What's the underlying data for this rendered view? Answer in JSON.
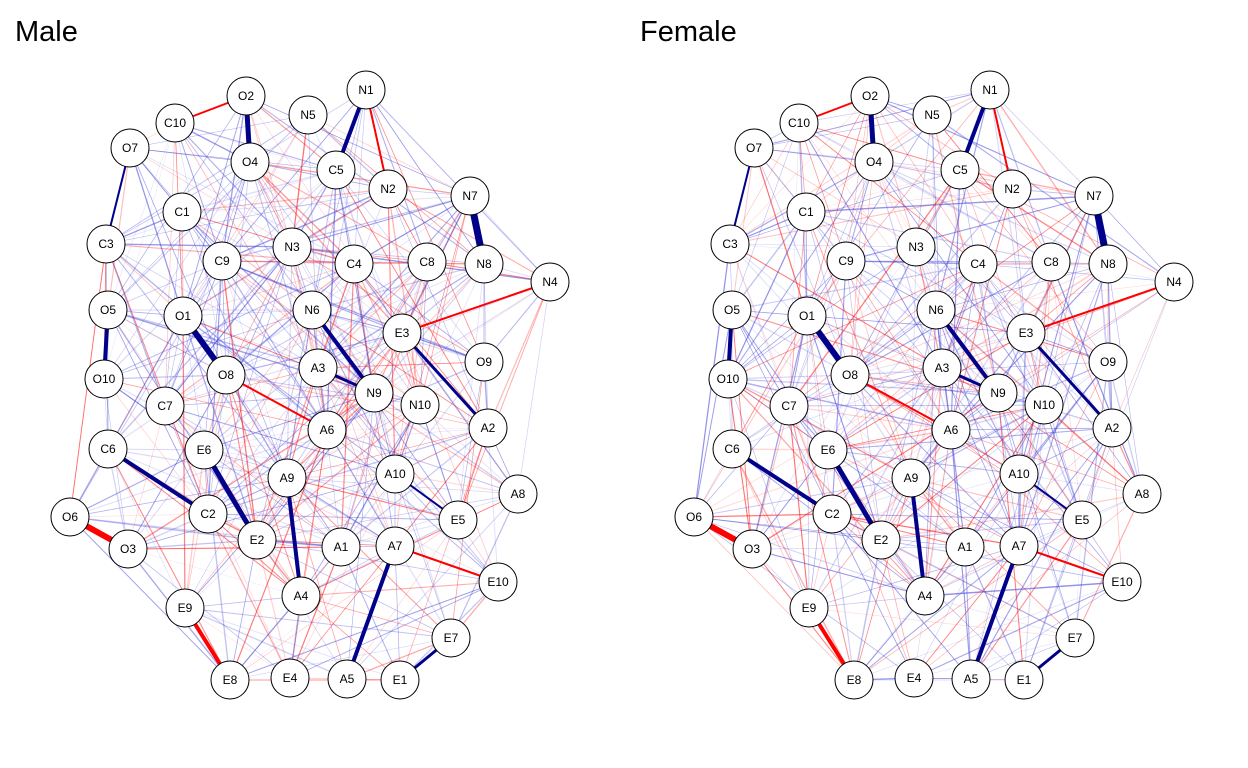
{
  "panels": [
    {
      "key": "male",
      "title": "Male"
    },
    {
      "key": "female",
      "title": "Female"
    }
  ],
  "network": {
    "positive_color": "#00008b",
    "negative_color": "#ff0000",
    "node_fill": "#ffffff",
    "node_stroke": "#000000",
    "nodes": [
      "N1",
      "N2",
      "N3",
      "N4",
      "N5",
      "N6",
      "N7",
      "N8",
      "N9",
      "N10",
      "E1",
      "E2",
      "E3",
      "E4",
      "E5",
      "E6",
      "E7",
      "E8",
      "E9",
      "E10",
      "O1",
      "O2",
      "O3",
      "O4",
      "O5",
      "O6",
      "O7",
      "O8",
      "O9",
      "O10",
      "A1",
      "A2",
      "A3",
      "A4",
      "A5",
      "A6",
      "A7",
      "A8",
      "A9",
      "A10",
      "C1",
      "C2",
      "C3",
      "C4",
      "C5",
      "C6",
      "C7",
      "C8",
      "C9",
      "C10"
    ],
    "strong_edges": [
      {
        "from": "N1",
        "to": "C5",
        "sign": "positive",
        "weight": 4
      },
      {
        "from": "N1",
        "to": "N2",
        "sign": "negative",
        "weight": 2
      },
      {
        "from": "N7",
        "to": "N8",
        "sign": "positive",
        "weight": 7
      },
      {
        "from": "O2",
        "to": "O4",
        "sign": "positive",
        "weight": 5
      },
      {
        "from": "O2",
        "to": "C10",
        "sign": "negative",
        "weight": 2
      },
      {
        "from": "O1",
        "to": "O8",
        "sign": "positive",
        "weight": 6
      },
      {
        "from": "O6",
        "to": "O3",
        "sign": "negative",
        "weight": 6
      },
      {
        "from": "E6",
        "to": "E2",
        "sign": "positive",
        "weight": 5
      },
      {
        "from": "C6",
        "to": "C2",
        "sign": "positive",
        "weight": 4
      },
      {
        "from": "A9",
        "to": "A4",
        "sign": "positive",
        "weight": 4
      },
      {
        "from": "A7",
        "to": "A5",
        "sign": "positive",
        "weight": 4
      },
      {
        "from": "N6",
        "to": "N9",
        "sign": "positive",
        "weight": 4
      },
      {
        "from": "A3",
        "to": "N9",
        "sign": "positive",
        "weight": 3
      },
      {
        "from": "E9",
        "to": "E8",
        "sign": "negative",
        "weight": 4
      },
      {
        "from": "E7",
        "to": "E1",
        "sign": "positive",
        "weight": 3
      },
      {
        "from": "E3",
        "to": "A2",
        "sign": "positive",
        "weight": 3
      },
      {
        "from": "O5",
        "to": "O10",
        "sign": "positive",
        "weight": 4
      },
      {
        "from": "A10",
        "to": "E5",
        "sign": "positive",
        "weight": 2
      },
      {
        "from": "C3",
        "to": "O7",
        "sign": "positive",
        "weight": 2
      },
      {
        "from": "N4",
        "to": "E3",
        "sign": "negative",
        "weight": 2
      },
      {
        "from": "O8",
        "to": "A6",
        "sign": "negative",
        "weight": 2
      },
      {
        "from": "E10",
        "to": "A7",
        "sign": "negative",
        "weight": 2
      }
    ]
  }
}
